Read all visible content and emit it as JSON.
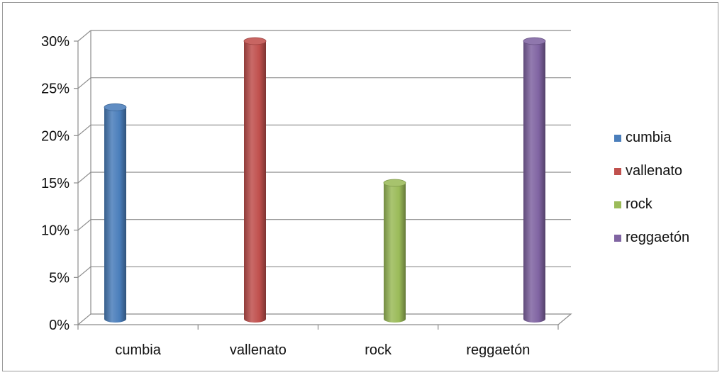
{
  "chart_data": {
    "type": "bar",
    "categories": [
      "cumbia",
      "vallenato",
      "rock",
      "reggaetón"
    ],
    "series": [
      {
        "name": "cumbia",
        "values": [
          23,
          null,
          null,
          null
        ],
        "color": "#4a7ebb"
      },
      {
        "name": "vallenato",
        "values": [
          null,
          30,
          null,
          null
        ],
        "color": "#c0504d"
      },
      {
        "name": "rock",
        "values": [
          null,
          null,
          15,
          null
        ],
        "color": "#9bbb59"
      },
      {
        "name": "reggaetón",
        "values": [
          null,
          null,
          null,
          30
        ],
        "color": "#8064a2"
      }
    ],
    "values": [
      23,
      30,
      15,
      30
    ],
    "colors": [
      "#4a7ebb",
      "#c0504d",
      "#9bbb59",
      "#8064a2"
    ],
    "y_ticks": [
      "0%",
      "5%",
      "10%",
      "15%",
      "20%",
      "25%",
      "30%"
    ],
    "ylim": [
      0,
      30
    ],
    "y_unit": "%",
    "style": "3d-cylinder",
    "grid": true,
    "legend": {
      "position": "right",
      "items": [
        "cumbia",
        "vallenato",
        "rock",
        "reggaetón"
      ]
    },
    "title": "",
    "xlabel": "",
    "ylabel": ""
  }
}
